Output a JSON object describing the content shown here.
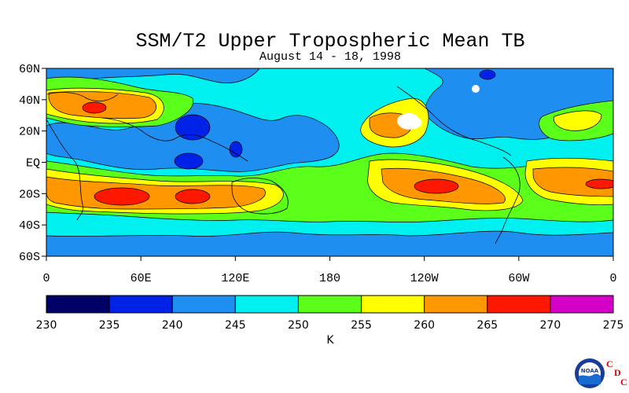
{
  "title": "SSM/T2 Upper Tropospheric Mean TB",
  "subtitle": "August 14 - 18, 1998",
  "map": {
    "lat_labels": [
      "60N",
      "40N",
      "20N",
      "EQ",
      "20S",
      "40S",
      "60S"
    ],
    "lon_labels": [
      "0",
      "60E",
      "120E",
      "180",
      "120W",
      "60W",
      "0"
    ]
  },
  "colorbar": {
    "levels": [
      "230",
      "235",
      "240",
      "245",
      "250",
      "255",
      "260",
      "265",
      "270",
      "275"
    ],
    "colors": [
      "#000066",
      "#0022e6",
      "#1e8ff0",
      "#00f0f0",
      "#5bff19",
      "#ffff00",
      "#ff9800",
      "#ff1800",
      "#d400c8"
    ],
    "unit": "K"
  },
  "logo": {
    "name": "NOAA",
    "text": "NOAA",
    "cdc": [
      "C",
      "D",
      "C"
    ]
  }
}
